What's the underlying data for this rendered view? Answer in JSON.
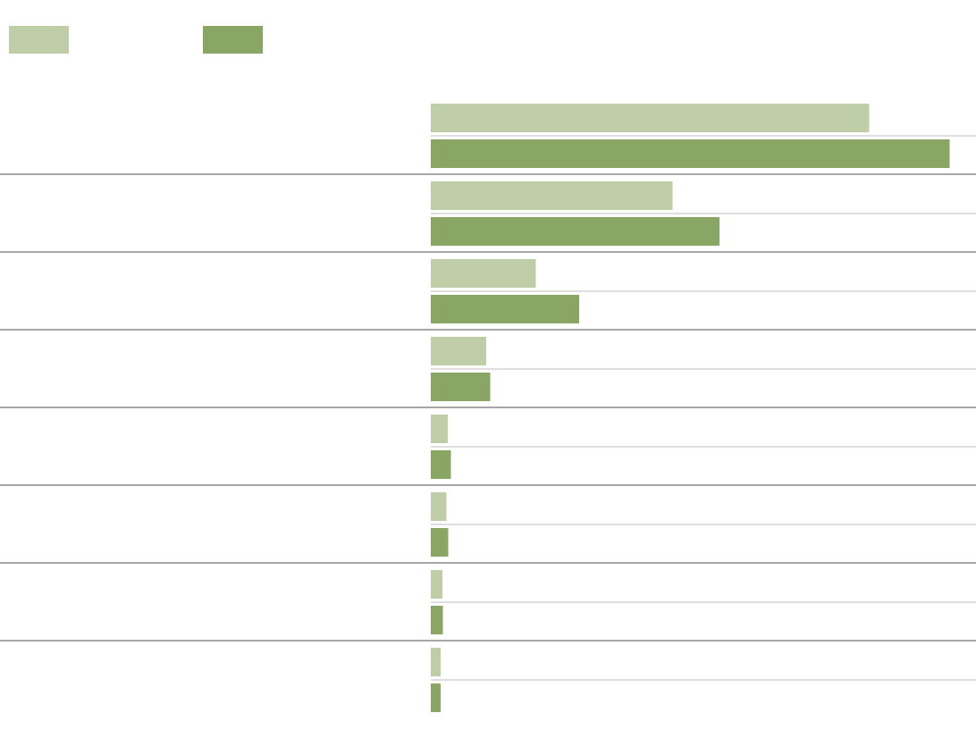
{
  "chart_data": {
    "type": "bar",
    "orientation": "horizontal",
    "grouping": "grouped",
    "legend_position": "top-left",
    "grid": false,
    "xlim": [
      0,
      100
    ],
    "categories": [
      "",
      "",
      "",
      "",
      "",
      "",
      "",
      ""
    ],
    "series": [
      {
        "values": [
          68,
          37.5,
          16.3,
          8.6,
          2.6,
          2.4,
          1.8,
          1.5
        ],
        "color": "#c0cea8"
      },
      {
        "values": [
          80.5,
          44.8,
          23,
          9.2,
          3.1,
          2.7,
          1.9,
          1.5
        ],
        "color": "#8aa664"
      }
    ]
  }
}
